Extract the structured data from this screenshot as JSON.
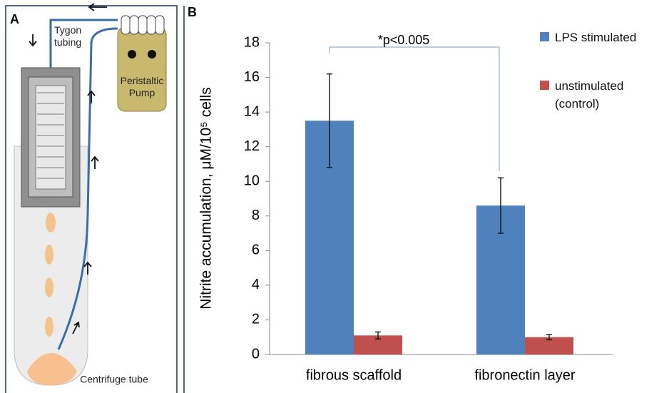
{
  "diagram": {
    "panel_label": "A",
    "tubing_label": "Tygon tubing",
    "pump_label": "Peristaltic Pump",
    "tube_label": "Centrifuge tube"
  },
  "chart_data": {
    "type": "bar",
    "panel_label": "B",
    "y_label": "Nitrite accumulation, μM/10⁵ cells",
    "annotation": "*p<0.005",
    "categories": [
      "fibrous scaffold",
      "fibronectin layer"
    ],
    "series": [
      {
        "name": "LPS stimulated",
        "color": "#4f81bd",
        "values": [
          13.5,
          8.6
        ],
        "errors": [
          2.7,
          1.6
        ]
      },
      {
        "name": "unstimulated (control)",
        "color": "#c0504d",
        "values": [
          1.1,
          1.0
        ],
        "errors": [
          0.2,
          0.15
        ]
      }
    ],
    "ylim": [
      0,
      18
    ],
    "yticks": [
      0,
      2,
      4,
      6,
      8,
      10,
      12,
      14,
      16,
      18
    ],
    "grid": false,
    "legend": "right"
  }
}
